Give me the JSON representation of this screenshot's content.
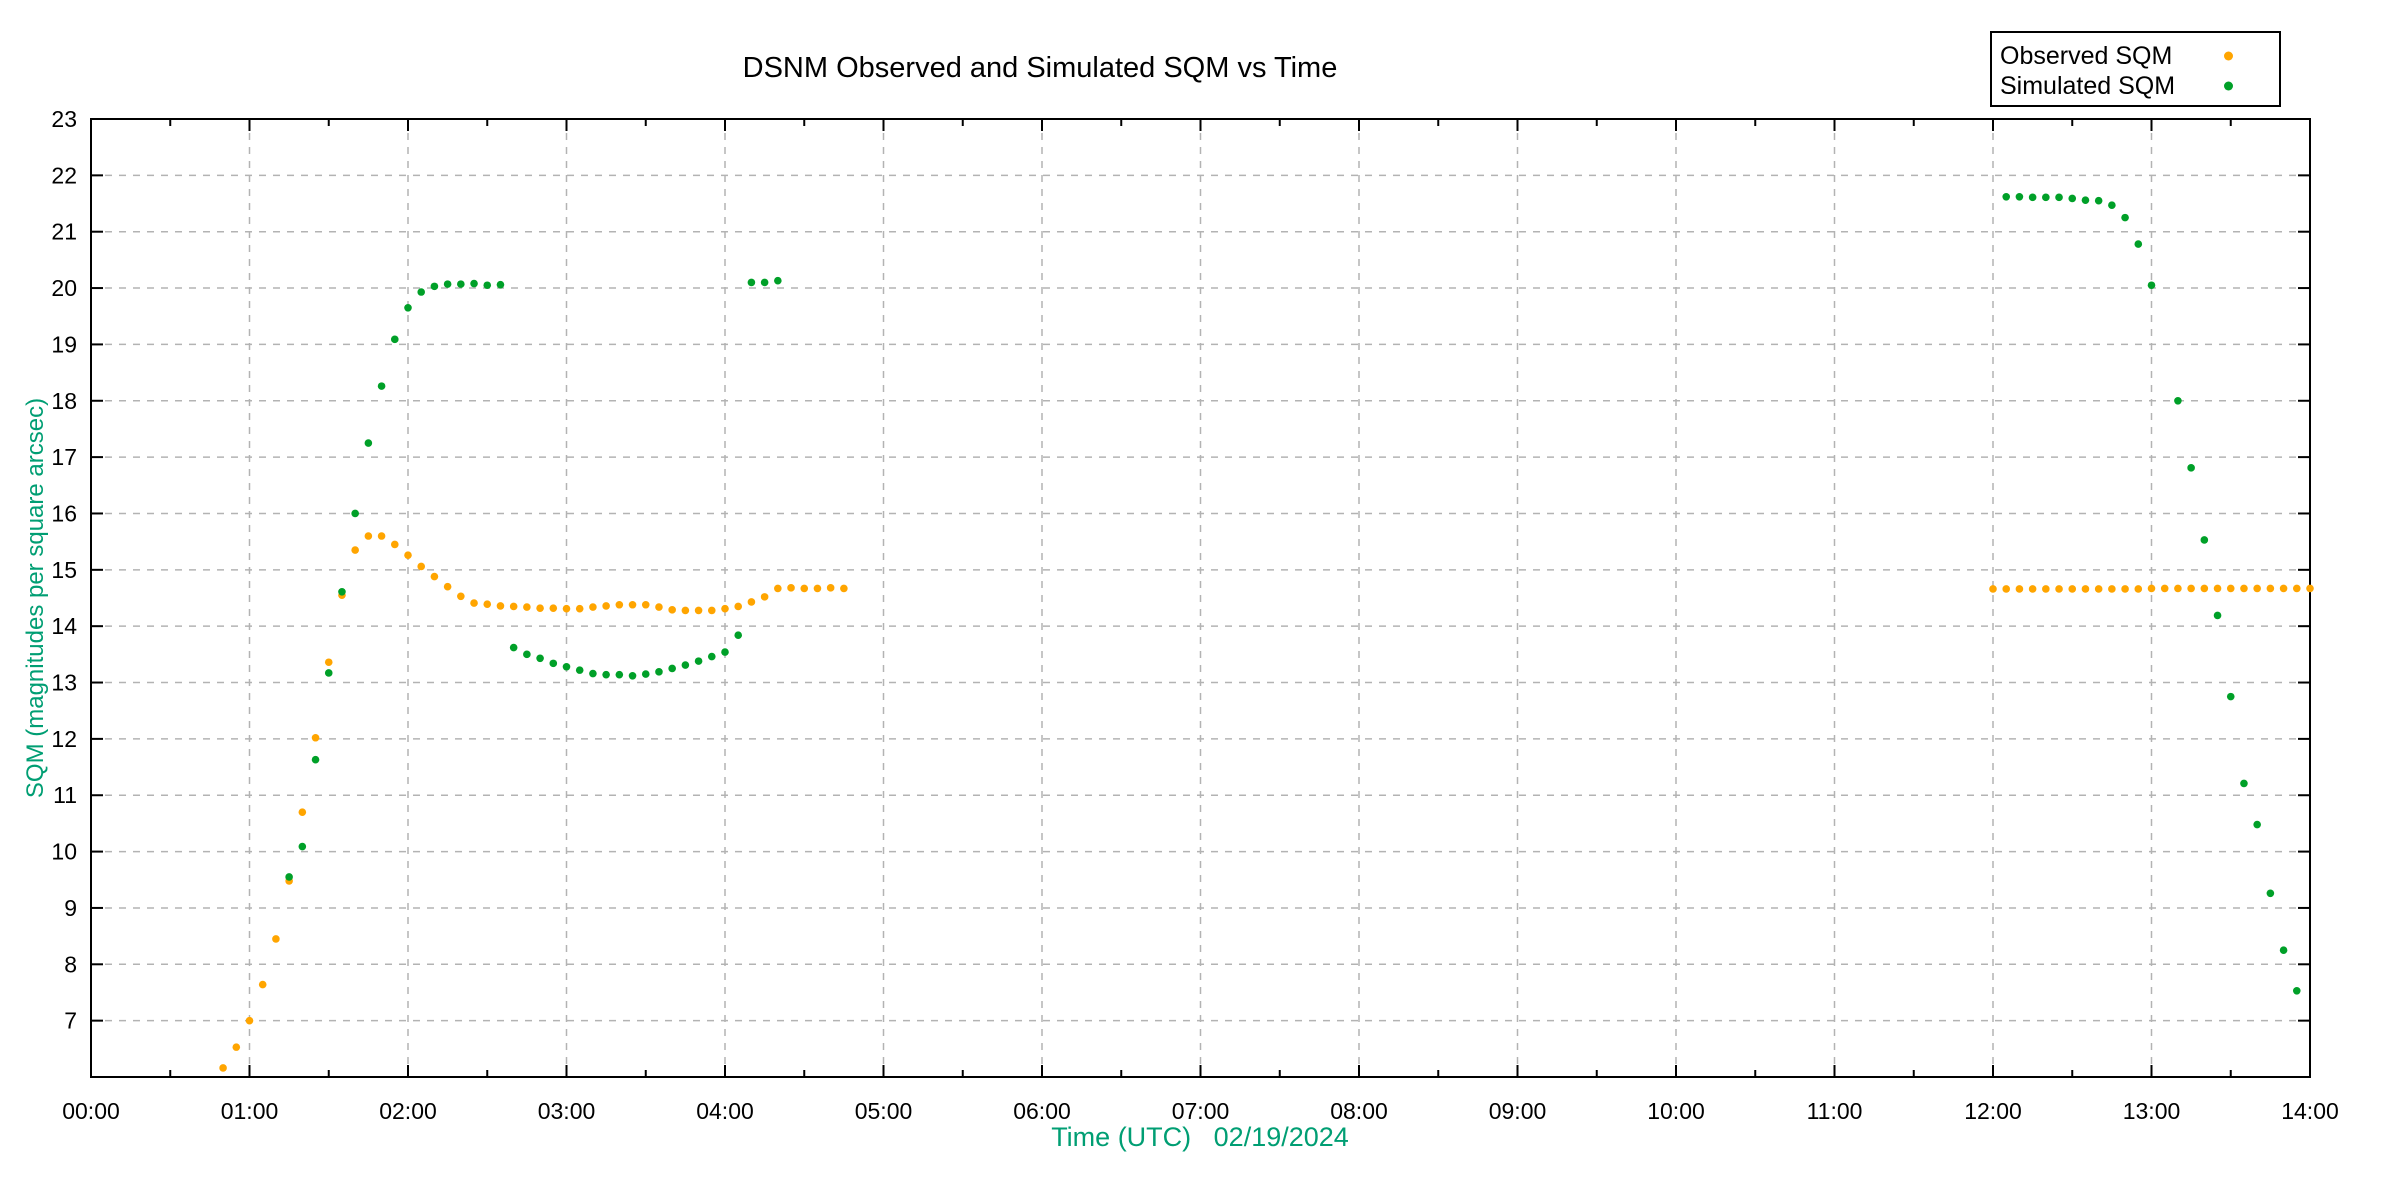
{
  "window": {
    "background": "#ffffff"
  },
  "legend": {
    "position": "top-right",
    "items": [
      {
        "label": "Observed SQM",
        "color": "#FFA500"
      },
      {
        "label": "Simulated SQM",
        "color": "#00A028"
      }
    ]
  },
  "chart_data": {
    "type": "scatter",
    "title": "DSNM Observed and Simulated SQM vs Time",
    "xlabel": "Time (UTC)   02/19/2024",
    "ylabel": "SQM (magnitudes per square arcsec)",
    "x_range_hours": [
      0,
      14
    ],
    "ylim": [
      6,
      23
    ],
    "x_ticks": [
      "00:00",
      "01:00",
      "02:00",
      "03:00",
      "04:00",
      "05:00",
      "06:00",
      "07:00",
      "08:00",
      "09:00",
      "10:00",
      "11:00",
      "12:00",
      "13:00",
      "14:00"
    ],
    "x_minor_every_hours": 0.5,
    "y_ticks": [
      7,
      8,
      9,
      10,
      11,
      12,
      13,
      14,
      15,
      16,
      17,
      18,
      19,
      20,
      21,
      22,
      23
    ],
    "grid": true,
    "grid_color": "#b3b3b3",
    "axis_color": "#000000",
    "label_color": "#009E73",
    "marker": "dot",
    "series": [
      {
        "name": "Observed SQM",
        "color": "#FFA500",
        "points": [
          [
            "00:50",
            6.16
          ],
          [
            "00:55",
            6.53
          ],
          [
            "01:00",
            7.0
          ],
          [
            "01:05",
            7.64
          ],
          [
            "01:10",
            8.45
          ],
          [
            "01:15",
            9.48
          ],
          [
            "01:20",
            10.7
          ],
          [
            "01:25",
            12.02
          ],
          [
            "01:30",
            13.36
          ],
          [
            "01:35",
            14.55
          ],
          [
            "01:40",
            15.35
          ],
          [
            "01:45",
            15.6
          ],
          [
            "01:50",
            15.6
          ],
          [
            "01:55",
            15.45
          ],
          [
            "02:00",
            15.26
          ],
          [
            "02:05",
            15.06
          ],
          [
            "02:10",
            14.88
          ],
          [
            "02:15",
            14.7
          ],
          [
            "02:20",
            14.53
          ],
          [
            "02:25",
            14.41
          ],
          [
            "02:30",
            14.39
          ],
          [
            "02:35",
            14.36
          ],
          [
            "02:40",
            14.35
          ],
          [
            "02:45",
            14.34
          ],
          [
            "02:50",
            14.32
          ],
          [
            "02:55",
            14.32
          ],
          [
            "03:00",
            14.31
          ],
          [
            "03:05",
            14.31
          ],
          [
            "03:10",
            14.34
          ],
          [
            "03:15",
            14.36
          ],
          [
            "03:20",
            14.38
          ],
          [
            "03:25",
            14.38
          ],
          [
            "03:30",
            14.38
          ],
          [
            "03:35",
            14.34
          ],
          [
            "03:40",
            14.29
          ],
          [
            "03:45",
            14.28
          ],
          [
            "03:50",
            14.28
          ],
          [
            "03:55",
            14.28
          ],
          [
            "04:00",
            14.31
          ],
          [
            "04:05",
            14.35
          ],
          [
            "04:10",
            14.43
          ],
          [
            "04:15",
            14.52
          ],
          [
            "04:20",
            14.67
          ],
          [
            "04:25",
            14.68
          ],
          [
            "04:30",
            14.67
          ],
          [
            "04:35",
            14.67
          ],
          [
            "04:40",
            14.68
          ],
          [
            "04:45",
            14.67
          ],
          [
            "12:00",
            14.66
          ],
          [
            "12:05",
            14.66
          ],
          [
            "12:10",
            14.66
          ],
          [
            "12:15",
            14.66
          ],
          [
            "12:20",
            14.66
          ],
          [
            "12:25",
            14.66
          ],
          [
            "12:30",
            14.66
          ],
          [
            "12:35",
            14.66
          ],
          [
            "12:40",
            14.66
          ],
          [
            "12:45",
            14.66
          ],
          [
            "12:50",
            14.66
          ],
          [
            "12:55",
            14.66
          ],
          [
            "13:00",
            14.67
          ],
          [
            "13:05",
            14.67
          ],
          [
            "13:10",
            14.67
          ],
          [
            "13:15",
            14.67
          ],
          [
            "13:20",
            14.67
          ],
          [
            "13:25",
            14.67
          ],
          [
            "13:30",
            14.67
          ],
          [
            "13:35",
            14.67
          ],
          [
            "13:40",
            14.67
          ],
          [
            "13:45",
            14.67
          ],
          [
            "13:50",
            14.67
          ],
          [
            "13:55",
            14.67
          ],
          [
            "14:00",
            14.67
          ]
        ]
      },
      {
        "name": "Simulated SQM",
        "color": "#00A028",
        "points": [
          [
            "01:15",
            9.55
          ],
          [
            "01:20",
            10.09
          ],
          [
            "01:25",
            11.63
          ],
          [
            "01:30",
            13.17
          ],
          [
            "01:35",
            14.61
          ],
          [
            "01:40",
            16.0
          ],
          [
            "01:45",
            17.25
          ],
          [
            "01:50",
            18.26
          ],
          [
            "01:55",
            19.09
          ],
          [
            "02:00",
            19.65
          ],
          [
            "02:05",
            19.93
          ],
          [
            "02:10",
            20.03
          ],
          [
            "02:15",
            20.07
          ],
          [
            "02:20",
            20.07
          ],
          [
            "02:25",
            20.08
          ],
          [
            "02:30",
            20.05
          ],
          [
            "02:35",
            20.06
          ],
          [
            "02:40",
            13.62
          ],
          [
            "02:45",
            13.5
          ],
          [
            "02:50",
            13.43
          ],
          [
            "02:55",
            13.34
          ],
          [
            "03:00",
            13.28
          ],
          [
            "03:05",
            13.22
          ],
          [
            "03:10",
            13.16
          ],
          [
            "03:15",
            13.14
          ],
          [
            "03:20",
            13.14
          ],
          [
            "03:25",
            13.12
          ],
          [
            "03:30",
            13.15
          ],
          [
            "03:35",
            13.19
          ],
          [
            "03:40",
            13.25
          ],
          [
            "03:45",
            13.31
          ],
          [
            "03:50",
            13.38
          ],
          [
            "03:55",
            13.46
          ],
          [
            "04:00",
            13.54
          ],
          [
            "04:05",
            13.84
          ],
          [
            "04:10",
            20.1
          ],
          [
            "04:15",
            20.1
          ],
          [
            "04:20",
            20.13
          ],
          [
            "12:05",
            21.62
          ],
          [
            "12:10",
            21.62
          ],
          [
            "12:15",
            21.61
          ],
          [
            "12:20",
            21.61
          ],
          [
            "12:25",
            21.61
          ],
          [
            "12:30",
            21.59
          ],
          [
            "12:35",
            21.56
          ],
          [
            "12:40",
            21.55
          ],
          [
            "12:45",
            21.47
          ],
          [
            "12:50",
            21.25
          ],
          [
            "12:55",
            20.78
          ],
          [
            "13:00",
            20.05
          ],
          [
            "13:10",
            18.0
          ],
          [
            "13:15",
            16.81
          ],
          [
            "13:20",
            15.53
          ],
          [
            "13:25",
            14.19
          ],
          [
            "13:30",
            12.75
          ],
          [
            "13:35",
            11.21
          ],
          [
            "13:40",
            10.48
          ],
          [
            "13:45",
            9.26
          ],
          [
            "13:50",
            8.25
          ],
          [
            "13:55",
            7.53
          ]
        ]
      }
    ]
  }
}
